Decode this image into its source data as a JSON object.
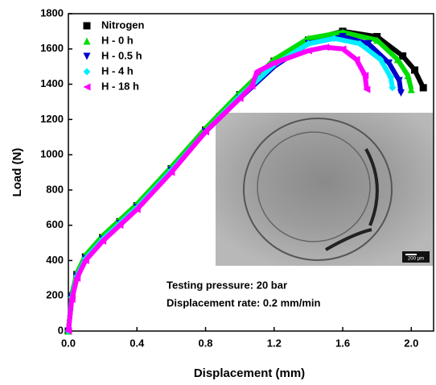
{
  "chart_data": {
    "type": "line",
    "x_label": "Displacement (mm)",
    "y_label": "Load (N)",
    "xlim": [
      0,
      2.13
    ],
    "ylim": [
      0,
      1800
    ],
    "xticks": [
      {
        "value": 0,
        "label": "0.0"
      },
      0.4,
      0.8,
      1.2,
      1.6,
      {
        "value": 2,
        "label": "2.0"
      }
    ],
    "yticks": [
      0,
      200,
      400,
      600,
      800,
      1000,
      1200,
      1400,
      1600,
      1800
    ],
    "legend": "upper left",
    "annotations": [
      "Testing pressure: 20 bar",
      "Displacement rate: 0.2 mm/min"
    ],
    "inset_scale_label": "200 μm",
    "series": [
      {
        "name": "Nitrogen",
        "color": "#000000",
        "marker": "square",
        "x": [
          0,
          0.02,
          0.05,
          0.1,
          0.2,
          0.3,
          0.4,
          0.6,
          0.8,
          1.0,
          1.2,
          1.4,
          1.6,
          1.8,
          1.95,
          2.02,
          2.07
        ],
        "values": [
          0,
          200,
          320,
          420,
          530,
          620,
          710,
          920,
          1140,
          1340,
          1530,
          1650,
          1700,
          1670,
          1560,
          1480,
          1380
        ]
      },
      {
        "name": "H - 0 h",
        "color": "#00dd00",
        "marker": "triangle-up",
        "x": [
          0,
          0.02,
          0.05,
          0.1,
          0.2,
          0.3,
          0.4,
          0.6,
          0.8,
          1.0,
          1.2,
          1.4,
          1.6,
          1.8,
          1.92,
          1.98,
          2.0
        ],
        "values": [
          0,
          210,
          330,
          430,
          540,
          630,
          720,
          930,
          1150,
          1350,
          1540,
          1660,
          1695,
          1650,
          1540,
          1450,
          1370
        ]
      },
      {
        "name": "H - 0.5 h",
        "color": "#0000cc",
        "marker": "triangle-down",
        "x": [
          0,
          0.02,
          0.05,
          0.1,
          0.2,
          0.3,
          0.4,
          0.6,
          0.8,
          1.0,
          1.2,
          1.4,
          1.6,
          1.75,
          1.87,
          1.93,
          1.94
        ],
        "values": [
          0,
          190,
          310,
          410,
          520,
          610,
          700,
          910,
          1130,
          1320,
          1500,
          1630,
          1670,
          1630,
          1520,
          1420,
          1350
        ]
      },
      {
        "name": "H - 4 h",
        "color": "#00eeff",
        "marker": "diamond",
        "x": [
          0,
          0.02,
          0.05,
          0.1,
          0.2,
          0.3,
          0.4,
          0.6,
          0.8,
          1.0,
          1.2,
          1.4,
          1.55,
          1.7,
          1.82,
          1.88,
          1.89
        ],
        "values": [
          0,
          190,
          310,
          410,
          520,
          610,
          700,
          910,
          1130,
          1330,
          1510,
          1630,
          1660,
          1630,
          1540,
          1440,
          1380
        ]
      },
      {
        "name": "H - 18 h",
        "color": "#ff00ff",
        "marker": "triangle-left",
        "x": [
          0,
          0.02,
          0.05,
          0.1,
          0.2,
          0.3,
          0.4,
          0.6,
          0.8,
          1.0,
          1.07,
          1.1,
          1.2,
          1.4,
          1.5,
          1.6,
          1.68,
          1.73,
          1.74
        ],
        "values": [
          0,
          180,
          300,
          400,
          510,
          600,
          690,
          900,
          1130,
          1320,
          1390,
          1470,
          1520,
          1590,
          1610,
          1600,
          1540,
          1450,
          1370
        ]
      }
    ]
  }
}
